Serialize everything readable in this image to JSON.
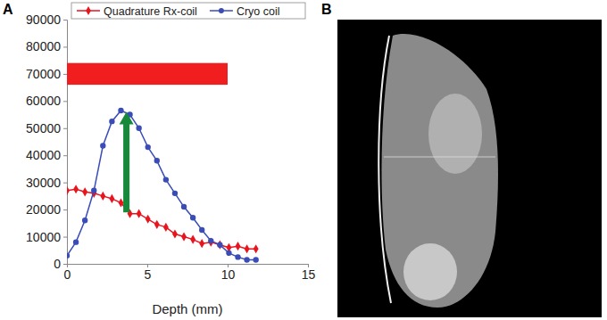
{
  "chart_data": {
    "type": "line",
    "panel_label": "A",
    "xlabel": "Depth (mm)",
    "x": [
      0,
      0.56,
      1.12,
      1.68,
      2.24,
      2.8,
      3.36,
      3.92,
      4.48,
      5.04,
      5.6,
      6.16,
      6.72,
      7.28,
      7.84,
      8.4,
      8.96,
      9.52,
      10.08,
      10.64,
      11.2,
      11.76
    ],
    "series": [
      {
        "name": "Quadrature Rx-coil",
        "color": "#e8141e",
        "marker": "diamond",
        "values": [
          27000,
          27500,
          26500,
          26000,
          25000,
          24000,
          22500,
          18500,
          18500,
          16500,
          14500,
          13500,
          11000,
          10000,
          9000,
          7500,
          8000,
          7000,
          6000,
          6500,
          5500,
          5500
        ]
      },
      {
        "name": "Cryo coil",
        "color": "#3a4cb8",
        "marker": "circle",
        "values": [
          3000,
          8000,
          16000,
          27000,
          43500,
          52500,
          56500,
          55000,
          50000,
          43000,
          38000,
          31000,
          26000,
          21000,
          17000,
          12500,
          8500,
          7000,
          4000,
          2500,
          1500,
          1500
        ]
      }
    ],
    "xlim": [
      0,
      15
    ],
    "xticks": [
      0,
      5,
      10,
      15
    ],
    "ylim": [
      0,
      90000
    ],
    "yticks": [
      0,
      10000,
      20000,
      30000,
      40000,
      50000,
      60000,
      70000,
      80000,
      90000
    ],
    "grid": false,
    "legend": "top",
    "range_bar": {
      "x": [
        0,
        10
      ],
      "y": [
        66000,
        74000
      ],
      "color": "#f01e1e"
    },
    "arrow": {
      "x": 3.7,
      "y": [
        19000,
        56000
      ],
      "color": "#168a3a"
    }
  },
  "image": {
    "panel_label": "B"
  }
}
